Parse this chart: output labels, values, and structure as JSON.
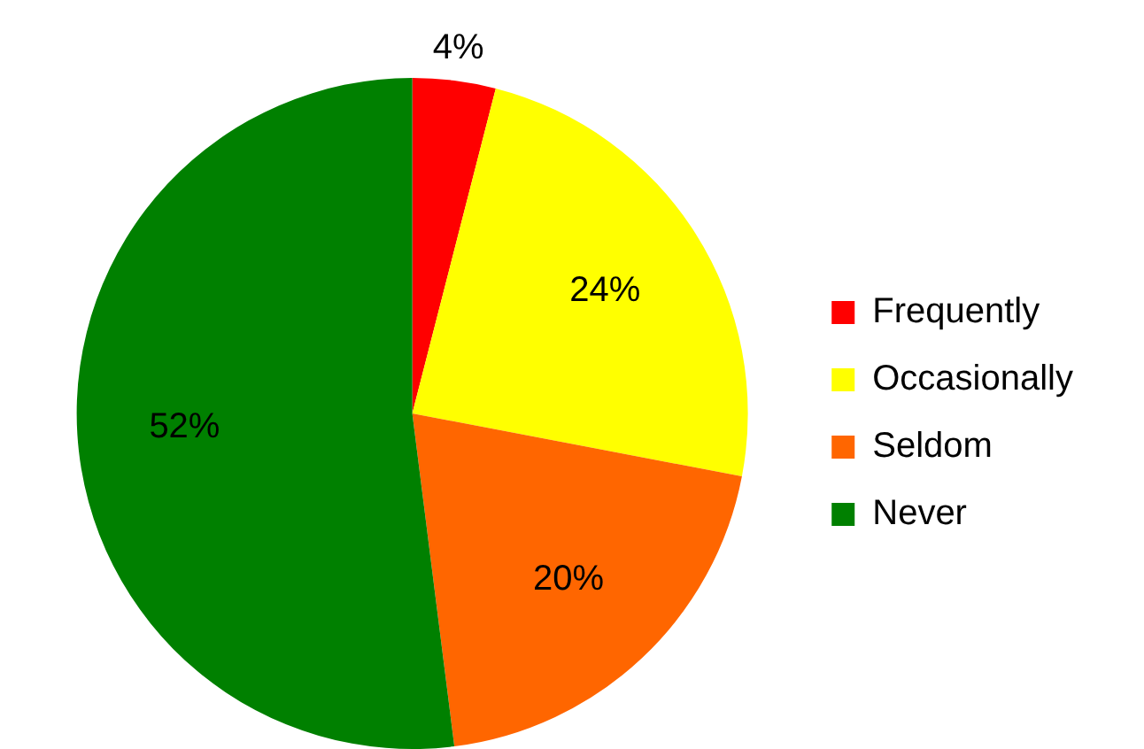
{
  "chart_data": {
    "type": "pie",
    "categories": [
      "Frequently",
      "Occasionally",
      "Seldom",
      "Never"
    ],
    "values": [
      4,
      24,
      20,
      52
    ],
    "colors": [
      "#ff0000",
      "#ffff00",
      "#ff6600",
      "#008000"
    ],
    "value_labels": [
      "4%",
      "24%",
      "20%",
      "52%"
    ],
    "legend": "right"
  }
}
